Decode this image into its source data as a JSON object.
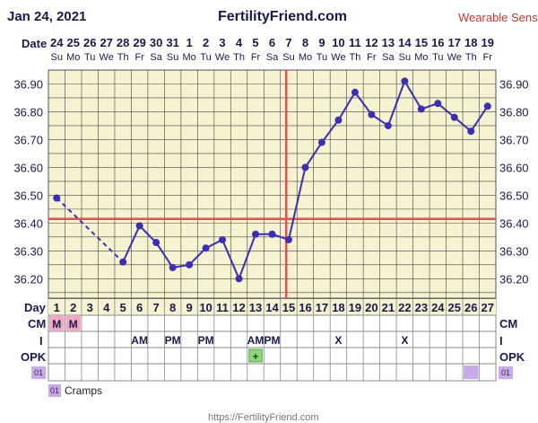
{
  "header": {
    "date": "Jan 24, 2021",
    "site": "FertilityFriend.com",
    "wearable": "Wearable Senso"
  },
  "row_labels": {
    "date": "Date",
    "day": "Day",
    "cm": "CM",
    "i": "I",
    "opk": "OPK"
  },
  "chart_data": {
    "type": "line",
    "title": "",
    "dates": [
      "24",
      "25",
      "26",
      "27",
      "28",
      "29",
      "30",
      "31",
      "1",
      "2",
      "3",
      "4",
      "5",
      "6",
      "7",
      "8",
      "9",
      "10",
      "11",
      "12",
      "13",
      "14",
      "15",
      "16",
      "17",
      "18",
      "19"
    ],
    "weekdays": [
      "Su",
      "Mo",
      "Tu",
      "We",
      "Th",
      "Fr",
      "Sa",
      "Su",
      "Mo",
      "Tu",
      "We",
      "Th",
      "Fr",
      "Sa",
      "Su",
      "Mo",
      "Tu",
      "We",
      "Th",
      "Fr",
      "Sa",
      "Su",
      "Mo",
      "Tu",
      "We",
      "Th",
      "Fr"
    ],
    "cycle_days": [
      1,
      2,
      3,
      4,
      5,
      6,
      7,
      8,
      9,
      10,
      11,
      12,
      13,
      14,
      15,
      16,
      17,
      18,
      19,
      20,
      21,
      22,
      23,
      24,
      25,
      26,
      27
    ],
    "visible_date_labels": [
      "24",
      "25",
      "26",
      "27",
      "28",
      "29",
      "30",
      "31",
      "1",
      "2",
      "3",
      "4",
      "5",
      "6",
      "7",
      "8",
      "9",
      "10",
      "11",
      "12",
      "13",
      "14",
      "15",
      "16",
      "17",
      "18",
      "19"
    ],
    "visible_weekday_labels": [
      "Su",
      "Mo",
      "Tu",
      "We",
      "Th",
      "Fr",
      "Sa",
      "Su",
      "Mo",
      "Tu",
      "We",
      "Th",
      "Fr",
      "Sa",
      "Su",
      "Mo",
      "Tu",
      "We",
      "Th",
      "Fr",
      "Sa",
      "Su",
      "Mo",
      "Tu",
      "We",
      "Th",
      "Fr"
    ],
    "visible_day_labels": [
      "1",
      "2",
      "3",
      "4",
      "5",
      "6",
      "7",
      "8",
      "9",
      "10",
      "11",
      "12",
      "13",
      "14",
      "15",
      "16",
      "17",
      "18",
      "19",
      "20",
      "21",
      "22",
      "23",
      "24",
      "25",
      "26",
      "27"
    ],
    "yticks": [
      "36.90",
      "36.80",
      "36.70",
      "36.60",
      "36.50",
      "36.40",
      "36.30",
      "36.20"
    ],
    "ylim": [
      36.13,
      36.95
    ],
    "temperatures": [
      {
        "day": 1,
        "temp": 36.49
      },
      {
        "day": 5,
        "temp": 36.26
      },
      {
        "day": 6,
        "temp": 36.39
      },
      {
        "day": 7,
        "temp": 36.33
      },
      {
        "day": 8,
        "temp": 36.24
      },
      {
        "day": 9,
        "temp": 36.25
      },
      {
        "day": 10,
        "temp": 36.31
      },
      {
        "day": 11,
        "temp": 36.34
      },
      {
        "day": 12,
        "temp": 36.2
      },
      {
        "day": 13,
        "temp": 36.36
      },
      {
        "day": 14,
        "temp": 36.36
      },
      {
        "day": 15,
        "temp": 36.34
      },
      {
        "day": 16,
        "temp": 36.6
      },
      {
        "day": 17,
        "temp": 36.69
      },
      {
        "day": 18,
        "temp": 36.77
      },
      {
        "day": 19,
        "temp": 36.87
      },
      {
        "day": 20,
        "temp": 36.79
      },
      {
        "day": 21,
        "temp": 36.75
      },
      {
        "day": 22,
        "temp": 36.91
      },
      {
        "day": 23,
        "temp": 36.81
      },
      {
        "day": 24,
        "temp": 36.83
      },
      {
        "day": 25,
        "temp": 36.78
      },
      {
        "day": 26,
        "temp": 36.73
      },
      {
        "day": 27,
        "temp": 36.82
      }
    ],
    "dashed_segments": [
      [
        1,
        5
      ]
    ],
    "coverline_temp": 36.415,
    "ovulation_day": 15,
    "cm": [
      {
        "day": 1,
        "label": "M"
      },
      {
        "day": 2,
        "label": "M"
      }
    ],
    "intercourse": [
      {
        "day": 6,
        "label": "AM"
      },
      {
        "day": 8,
        "label": "PM"
      },
      {
        "day": 10,
        "label": "PM"
      },
      {
        "day": 13,
        "label": "AM"
      },
      {
        "day": 14,
        "label": "PM"
      },
      {
        "day": 18,
        "label": "X"
      },
      {
        "day": 22,
        "label": "X"
      }
    ],
    "opk": [
      {
        "day": 13,
        "label": "+"
      }
    ],
    "symptom_days": [
      26
    ],
    "symptom_code": "01",
    "colors": {
      "line": "#3a2fb0",
      "coverline": "#d9534f",
      "grid_bg": "#f6f2d2",
      "cm": "#f2a8c4",
      "opk": "#8fd67a",
      "symptom": "#c9a8ee"
    }
  },
  "legend": {
    "code": "01",
    "label": "Cramps"
  },
  "footer": "https://FertilityFriend.com"
}
